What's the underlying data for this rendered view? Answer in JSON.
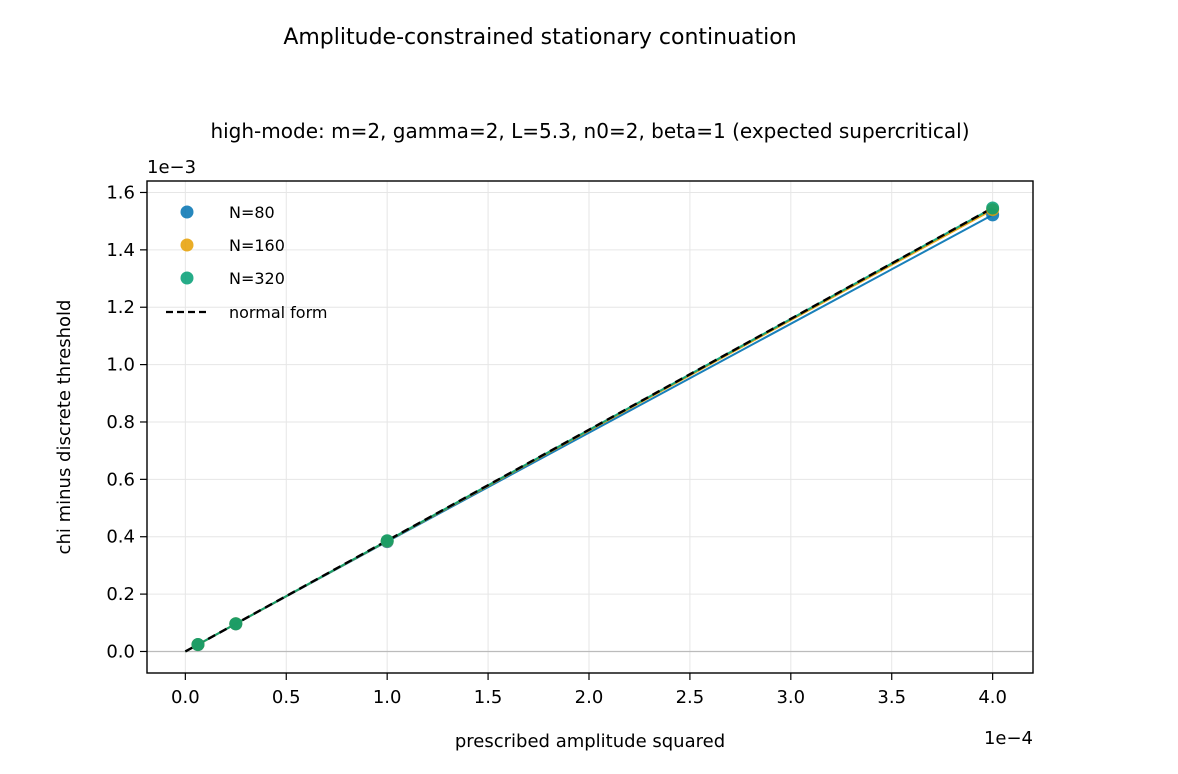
{
  "chart_data": {
    "type": "scatter",
    "suptitle": "Amplitude-constrained stationary continuation",
    "title": "high-mode: m=2, gamma=2, L=5.3, n0=2, beta=1 (expected supercritical)",
    "xlabel": "prescribed amplitude squared",
    "ylabel": "chi minus discrete threshold",
    "x_multiplier_label": "1e−4",
    "y_multiplier_label": "1e−3",
    "xlim": [
      -1.9e-05,
      0.00042
    ],
    "ylim": [
      -7.5e-05,
      0.00164
    ],
    "x_ticks": [
      0,
      5e-05,
      0.0001,
      0.00015,
      0.0002,
      0.00025,
      0.0003,
      0.00035,
      0.0004
    ],
    "x_tick_labels": [
      "0.0",
      "0.5",
      "1.0",
      "1.5",
      "2.0",
      "2.5",
      "3.0",
      "3.5",
      "4.0"
    ],
    "y_ticks": [
      0,
      0.0002,
      0.0004,
      0.0006,
      0.0008,
      0.001,
      0.0012,
      0.0014,
      0.0016
    ],
    "y_tick_labels": [
      "0.0",
      "0.2",
      "0.4",
      "0.6",
      "0.8",
      "1.0",
      "1.2",
      "1.4",
      "1.6"
    ],
    "grid": true,
    "legend_position": "upper-left",
    "series": [
      {
        "name": "N=80",
        "color": "#0072b2",
        "marker": "circle",
        "x": [
          6.25e-06,
          2.5e-05,
          0.0001,
          0.0004
        ],
        "y": [
          2.4e-05,
          9.62e-05,
          0.000383,
          0.001522
        ]
      },
      {
        "name": "N=160",
        "color": "#e69f00",
        "marker": "circle",
        "x": [
          6.25e-06,
          2.5e-05,
          0.0001,
          0.0004
        ],
        "y": [
          2.41e-05,
          9.65e-05,
          0.000385,
          0.00154
        ]
      },
      {
        "name": "N=320",
        "color": "#009e73",
        "marker": "circle",
        "x": [
          6.25e-06,
          2.5e-05,
          0.0001,
          0.0004
        ],
        "y": [
          2.42e-05,
          9.67e-05,
          0.000386,
          0.001546
        ]
      }
    ],
    "reference_line": {
      "name": "normal form",
      "color": "#000000",
      "style": "dashed",
      "x": [
        0,
        0.0004
      ],
      "y": [
        0,
        0.001546
      ]
    },
    "zero_line": {
      "y": 0,
      "color": "#bbbbbb"
    }
  }
}
